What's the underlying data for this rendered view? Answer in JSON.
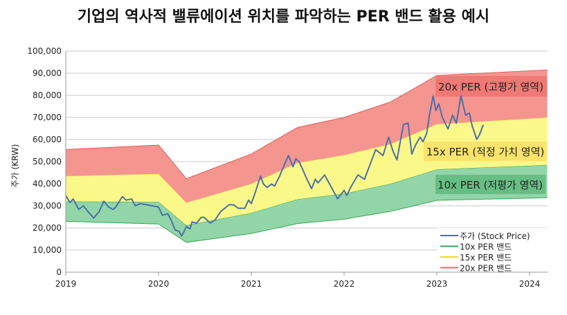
{
  "chart_data": {
    "type": "area",
    "title": "기업의 역사적 밸류에이션 위치를 파악하는 PER 밴드 활용 예시",
    "ylabel": "주가 (KRW)",
    "xlabel": "",
    "xlim": [
      2019,
      2024.19
    ],
    "ylim": [
      0,
      100000
    ],
    "grid": true,
    "x_ticks": [
      "2019",
      "2020",
      "2021",
      "2022",
      "2023",
      "2024"
    ],
    "y_ticks": [
      "0",
      "10,000",
      "20,000",
      "30,000",
      "40,000",
      "50,000",
      "60,000",
      "70,000",
      "80,000",
      "90,000",
      "100,000"
    ],
    "legend_position": "bottom-right",
    "band_x": [
      2019.0,
      2020.0,
      2020.3,
      2021.0,
      2021.5,
      2022.0,
      2022.5,
      2023.0,
      2024.19
    ],
    "band_bounds": {
      "lower": [
        23000,
        21800,
        13500,
        17500,
        22000,
        24000,
        27500,
        32500,
        33700
      ],
      "green_top": [
        32000,
        31800,
        21200,
        26800,
        33000,
        35500,
        40000,
        46500,
        48500
      ],
      "yellow_top": [
        43500,
        44500,
        31500,
        40000,
        49500,
        53000,
        58000,
        67000,
        70000
      ],
      "red_top": [
        55500,
        57500,
        42300,
        53500,
        65500,
        70000,
        77000,
        89000,
        91500
      ]
    },
    "series": [
      {
        "name": "주가 (Stock Price)",
        "color": "#4a6fa8",
        "x": [
          2019.0,
          2019.045,
          2019.08,
          2019.14,
          2019.19,
          2019.24,
          2019.3,
          2019.36,
          2019.41,
          2019.46,
          2019.51,
          2019.54,
          2019.61,
          2019.65,
          2019.71,
          2019.75,
          2019.8,
          2019.87,
          2020.0,
          2020.04,
          2020.1,
          2020.14,
          2020.18,
          2020.22,
          2020.25,
          2020.3,
          2020.34,
          2020.36,
          2020.41,
          2020.46,
          2020.49,
          2020.56,
          2020.61,
          2020.67,
          2020.76,
          2020.81,
          2020.86,
          2020.93,
          2020.97,
          2021.0,
          2021.04,
          2021.1,
          2021.13,
          2021.17,
          2021.22,
          2021.25,
          2021.3,
          2021.4,
          2021.45,
          2021.48,
          2021.52,
          2021.6,
          2021.65,
          2021.69,
          2021.72,
          2021.79,
          2021.85,
          2021.93,
          2022.0,
          2022.03,
          2022.07,
          2022.15,
          2022.22,
          2022.28,
          2022.34,
          2022.42,
          2022.48,
          2022.53,
          2022.57,
          2022.64,
          2022.69,
          2022.73,
          2022.77,
          2022.82,
          2022.85,
          2022.89,
          2022.92,
          2022.96,
          2022.99,
          2023.02,
          2023.06,
          2023.12,
          2023.17,
          2023.21,
          2023.26,
          2023.31,
          2023.35,
          2023.38,
          2023.43,
          2023.46,
          2023.5
        ],
        "values": [
          34600,
          31500,
          33100,
          28400,
          30000,
          27400,
          24500,
          27400,
          32100,
          29500,
          28400,
          29500,
          34200,
          32600,
          33100,
          30000,
          31000,
          30500,
          29500,
          25800,
          26400,
          23200,
          19000,
          18500,
          16400,
          20600,
          19600,
          22700,
          22200,
          24800,
          24800,
          22200,
          23700,
          27400,
          30500,
          30500,
          28900,
          28900,
          32600,
          31000,
          35700,
          43500,
          39900,
          38300,
          39900,
          38900,
          43000,
          52800,
          47700,
          51300,
          49700,
          42000,
          37800,
          42000,
          40400,
          44000,
          39400,
          33200,
          37000,
          34700,
          38300,
          44000,
          42000,
          48700,
          55400,
          52800,
          61100,
          54400,
          50800,
          66800,
          67400,
          53400,
          57500,
          61100,
          59000,
          62700,
          71000,
          79800,
          73100,
          76200,
          70000,
          64800,
          71000,
          67400,
          79800,
          71000,
          72000,
          66300,
          60100,
          62200,
          66600
        ]
      },
      {
        "name": "10x PER 밴드",
        "color": "#3aa655"
      },
      {
        "name": "15x PER 밴드",
        "color": "#f3d433"
      },
      {
        "name": "20x PER 밴드",
        "color": "#ee6b66"
      }
    ],
    "annotations": {
      "high": "20x PER (고평가 영역)",
      "fair": "15x PER (적정 가치 영역)",
      "low": "10x PER (저평가 영역)"
    },
    "colors": {
      "red_fill": "#f59590",
      "yellow_fill": "#fbf88a",
      "green_fill": "#92d5a8",
      "red_label": "#ef7472",
      "yellow_label": "#fbe36a",
      "green_label": "#62bb80"
    }
  }
}
